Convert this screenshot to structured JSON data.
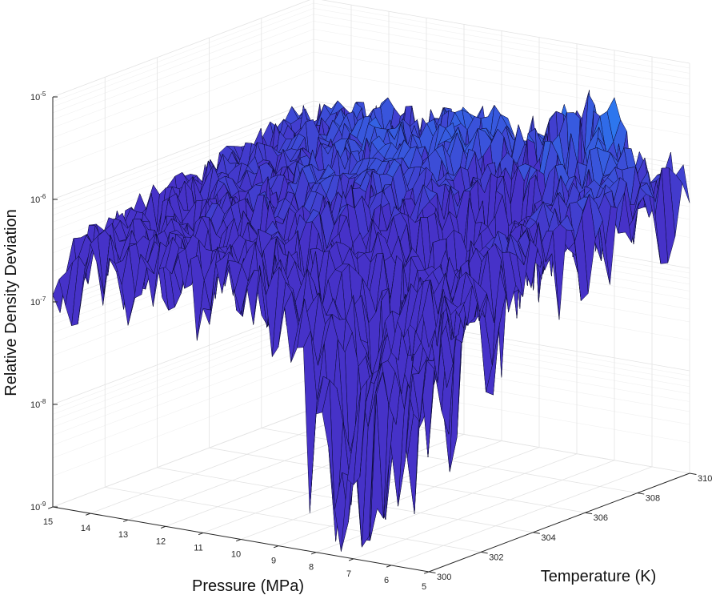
{
  "chart_data": {
    "type": "surface",
    "xlabel": "Pressure (MPa)",
    "ylabel": "Temperature (K)",
    "zlabel": "Relative Density Deviation",
    "xlim": [
      5,
      15
    ],
    "ylim": [
      300,
      310
    ],
    "zlim": [
      1e-09,
      1e-05
    ],
    "zscale": "log",
    "grid": true,
    "x_ticks": [
      "5",
      "6",
      "7",
      "8",
      "9",
      "10",
      "11",
      "12",
      "13",
      "14",
      "15"
    ],
    "y_ticks": [
      "300",
      "302",
      "304",
      "306",
      "308",
      "310"
    ],
    "z_ticks": [
      {
        "base": "10",
        "exp": "-9"
      },
      {
        "base": "10",
        "exp": "-8"
      },
      {
        "base": "10",
        "exp": "-7"
      },
      {
        "base": "10",
        "exp": "-6"
      },
      {
        "base": "10",
        "exp": "-5"
      }
    ],
    "surface": {
      "pressure_grid_MPa": [
        15,
        14,
        13,
        12,
        11,
        10,
        9,
        8,
        7.5,
        7,
        6,
        5
      ],
      "temperature_grid_K": [
        300,
        302,
        304,
        306,
        308,
        310
      ],
      "log10_deviation": [
        [
          -6.5,
          -6.4,
          -6.3,
          -6.2,
          -6.1,
          -6.0
        ],
        [
          -6.4,
          -6.3,
          -6.2,
          -6.1,
          -6.0,
          -6.0
        ],
        [
          -6.4,
          -6.3,
          -6.2,
          -6.1,
          -6.0,
          -5.9
        ],
        [
          -6.3,
          -6.2,
          -6.1,
          -6.0,
          -5.9,
          -5.9
        ],
        [
          -6.3,
          -6.2,
          -6.1,
          -6.0,
          -5.9,
          -5.8
        ],
        [
          -6.3,
          -6.2,
          -6.1,
          -6.0,
          -5.9,
          -5.8
        ],
        [
          -6.4,
          -6.3,
          -6.2,
          -6.1,
          -6.0,
          -5.9
        ],
        [
          -7.0,
          -6.8,
          -6.5,
          -6.2,
          -5.9,
          -5.6
        ],
        [
          -8.2,
          -7.8,
          -7.2,
          -6.5,
          -5.8,
          -5.3
        ],
        [
          -7.5,
          -7.3,
          -7.0,
          -6.4,
          -5.8,
          -5.5
        ],
        [
          -6.4,
          -6.3,
          -6.2,
          -6.1,
          -6.0,
          -6.0
        ],
        [
          -6.3,
          -6.2,
          -6.1,
          -6.0,
          -6.0,
          -6.0
        ]
      ]
    },
    "colormap": "parula"
  }
}
